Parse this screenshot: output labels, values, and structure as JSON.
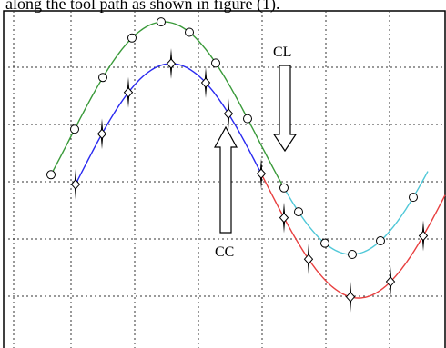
{
  "caption": "along the tool path as shown in figure (1).",
  "labels": {
    "cl": "CL",
    "cc": "CC"
  },
  "colors": {
    "cl_upper": "#3a9a3a",
    "cc_upper": "#2a2af0",
    "cl_lower": "#50c8d8",
    "cc_lower": "#e84040",
    "grid": "#333333",
    "frame": "#000000"
  },
  "markers": {
    "cl_path": "circle",
    "cc_path": "diamond-with-vertical-spike"
  }
}
